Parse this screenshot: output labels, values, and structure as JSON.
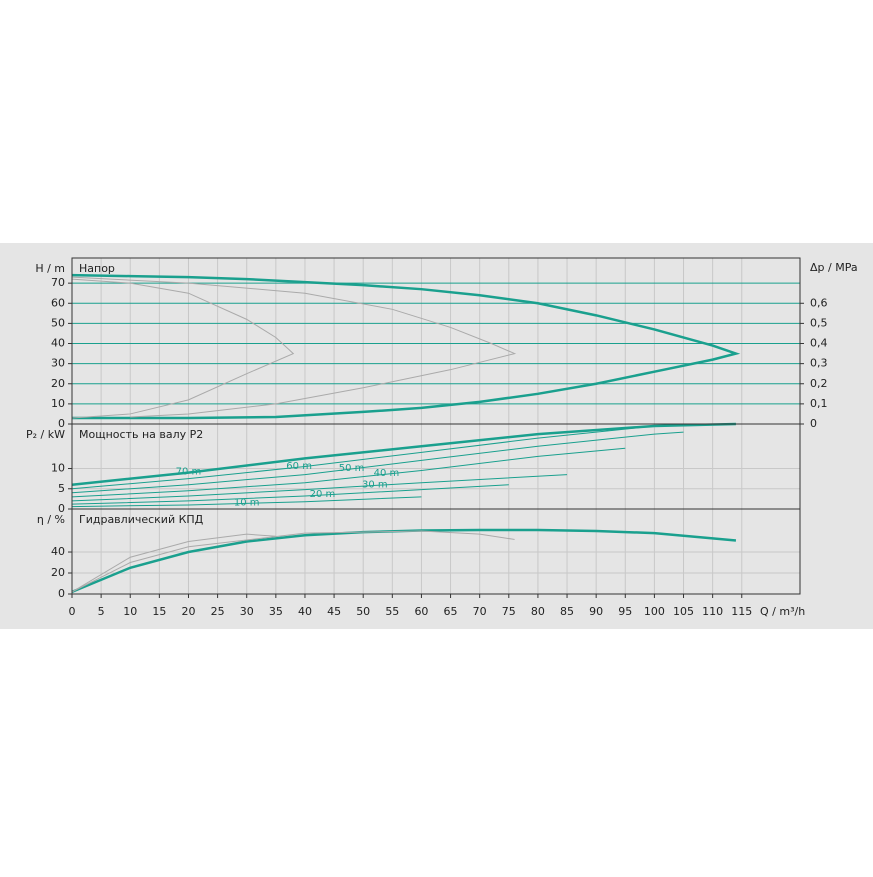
{
  "chart_data": [
    {
      "type": "line",
      "title": "Напор",
      "ylabel": "H / m",
      "y2label": "Δp / MPa",
      "grid_color": "#1aa08e",
      "xlim": [
        0,
        125
      ],
      "ylim": [
        0,
        82.5
      ],
      "yticks": [
        0,
        10,
        20,
        30,
        40,
        50,
        60,
        70
      ],
      "y2lim": [
        0,
        0.825
      ],
      "y2ticks": [
        0,
        {
          "value": 0.1,
          "label": "0,1"
        },
        {
          "value": 0.2,
          "label": "0,2"
        },
        {
          "value": 0.3,
          "label": "0,3"
        },
        {
          "value": 0.4,
          "label": "0,4"
        },
        {
          "value": 0.5,
          "label": "0,5"
        },
        {
          "value": 0.6,
          "label": "0,6"
        }
      ],
      "series": [
        {
          "color": "#1aa08e",
          "x": [
            0,
            10,
            20,
            30,
            40,
            50,
            60,
            70,
            80,
            90,
            100,
            110,
            114,
            110,
            100,
            90,
            80,
            70,
            60,
            50,
            35,
            20,
            0
          ],
          "values": [
            74,
            73.5,
            73,
            72,
            70.5,
            69,
            67,
            64,
            60,
            54,
            47,
            39,
            35,
            32,
            26,
            20,
            15,
            11,
            8,
            6,
            3.5,
            3,
            3
          ]
        },
        {
          "color": "#aaaaaa",
          "x": [
            0,
            20,
            40,
            55,
            65,
            72,
            76,
            65,
            50,
            35,
            20,
            10
          ],
          "values": [
            73,
            70,
            65,
            57,
            48,
            40,
            35,
            27,
            18,
            10,
            5,
            3.5
          ]
        },
        {
          "color": "#aaaaaa",
          "x": [
            0,
            10,
            20,
            30,
            35,
            38,
            30,
            20,
            10,
            0
          ],
          "values": [
            72,
            70,
            65,
            52,
            43,
            35,
            25,
            12,
            5,
            3
          ]
        }
      ]
    },
    {
      "type": "line",
      "title": "Мощность на валу P2",
      "ylabel": "P₂ / kW",
      "grid_color": "#c8c8c8",
      "xlim": [
        0,
        125
      ],
      "ylim": [
        0,
        21
      ],
      "yticks": [
        0,
        5,
        10
      ],
      "series": [
        {
          "name": "70 m",
          "color": "#1aa08e",
          "x": [
            0,
            20,
            40,
            60,
            80,
            100,
            114
          ],
          "values": [
            6,
            9,
            12.5,
            15.5,
            18.5,
            20.5,
            21
          ]
        },
        {
          "name": "60 m",
          "color": "#1aa08e",
          "x": [
            0,
            20,
            40,
            60,
            80,
            100,
            110
          ],
          "values": [
            5,
            7.5,
            10.5,
            14,
            17.5,
            20.5,
            21
          ]
        },
        {
          "name": "50 m",
          "color": "#1aa08e",
          "x": [
            0,
            20,
            40,
            60,
            80,
            100,
            105
          ],
          "values": [
            4,
            6,
            8.5,
            12,
            15.5,
            18.5,
            19
          ]
        },
        {
          "name": "40 m",
          "color": "#1aa08e",
          "x": [
            0,
            20,
            40,
            60,
            80,
            95
          ],
          "values": [
            3,
            4.5,
            6.5,
            9.5,
            13,
            15
          ]
        },
        {
          "name": "30 m",
          "color": "#1aa08e",
          "x": [
            0,
            20,
            40,
            60,
            85
          ],
          "values": [
            2,
            3.2,
            4.8,
            6.5,
            8.5
          ]
        },
        {
          "name": "20 m",
          "color": "#1aa08e",
          "x": [
            0,
            20,
            40,
            60,
            75
          ],
          "values": [
            1.2,
            2,
            3.2,
            4.8,
            6
          ]
        },
        {
          "name": "10 m",
          "color": "#1aa08e",
          "x": [
            0,
            20,
            40,
            60
          ],
          "values": [
            0.6,
            1,
            1.8,
            3
          ]
        }
      ]
    },
    {
      "type": "line",
      "title": "Гидравлический КПД",
      "ylabel": "η / %",
      "xlabel": "Q / m³/h",
      "grid_color": "#c8c8c8",
      "xlim": [
        0,
        125
      ],
      "ylim": [
        0,
        81
      ],
      "yticks": [
        0,
        20,
        40
      ],
      "xticks": [
        0,
        5,
        10,
        15,
        20,
        25,
        30,
        35,
        40,
        45,
        50,
        55,
        60,
        65,
        70,
        75,
        80,
        85,
        90,
        95,
        100,
        105,
        110,
        115
      ],
      "series": [
        {
          "color": "#1aa08e",
          "x": [
            0,
            10,
            20,
            30,
            40,
            50,
            60,
            70,
            80,
            90,
            100,
            110,
            114
          ],
          "values": [
            2,
            25,
            40,
            50,
            56,
            59,
            60.5,
            61,
            61,
            60,
            58,
            53,
            51
          ]
        },
        {
          "color": "#aaaaaa",
          "x": [
            0,
            10,
            20,
            40,
            60,
            70,
            76
          ],
          "values": [
            2,
            30,
            45,
            58,
            60,
            57,
            52
          ]
        },
        {
          "color": "#aaaaaa",
          "x": [
            0,
            10,
            20,
            30,
            35
          ],
          "values": [
            2,
            35,
            50,
            57,
            55
          ]
        }
      ]
    }
  ]
}
